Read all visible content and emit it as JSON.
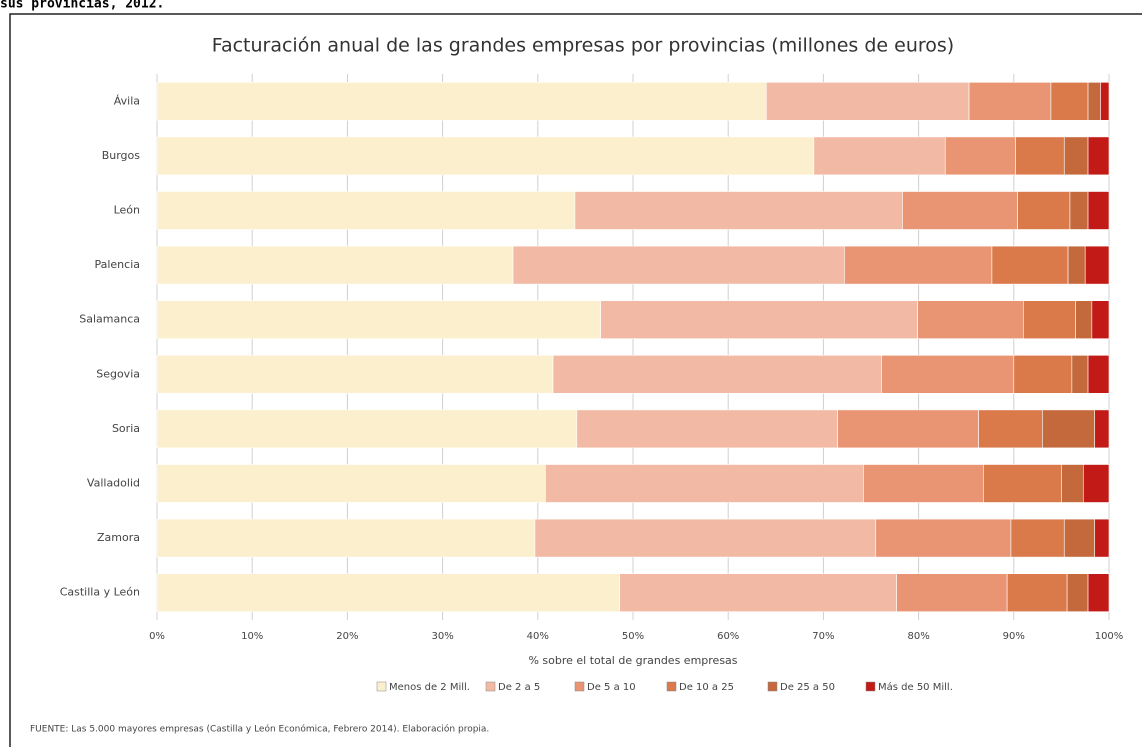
{
  "caption": "sus provincias, 2012.",
  "chart_data": {
    "type": "stacked-barh",
    "title": "Facturación anual de las grandes empresas por provincias (millones de euros)",
    "x_label": "% sobre el total de grandes empresas",
    "source": "FUENTE: Las 5.000 mayores empresas (Castilla y León Económica, Febrero 2014). Elaboración propia.",
    "categories": [
      "Ávila",
      "Burgos",
      "León",
      "Palencia",
      "Salamanca",
      "Segovia",
      "Soria",
      "Valladolid",
      "Zamora",
      "Castilla y León"
    ],
    "series": [
      {
        "name": "Menos de 2 Mill.",
        "color": "#fcefcd",
        "values": [
          64,
          69,
          43.9,
          37.4,
          46.6,
          41.6,
          44.1,
          40.8,
          39.7,
          48.6
        ]
      },
      {
        "name": "De 2 a 5",
        "color": "#f2baa4",
        "values": [
          21.3,
          13.8,
          34.4,
          34.8,
          33.3,
          34.5,
          27.4,
          33.4,
          35.8,
          29.1
        ]
      },
      {
        "name": "De 5 a 10",
        "color": "#e99574",
        "values": [
          8.6,
          7.4,
          12.1,
          15.5,
          11.1,
          13.9,
          14.8,
          12.6,
          14.2,
          11.6
        ]
      },
      {
        "name": "De 10 a 25",
        "color": "#da7a4a",
        "values": [
          3.9,
          5.1,
          5.5,
          8,
          5.5,
          6.1,
          6.7,
          8.2,
          5.6,
          6.3
        ]
      },
      {
        "name": "De 25 a 50",
        "color": "#c3693c",
        "values": [
          1.3,
          2.5,
          1.9,
          1.8,
          1.7,
          1.7,
          5.5,
          2.3,
          3.2,
          2.2
        ]
      },
      {
        "name": "Más de 50 Mill.",
        "color": "#c21a16",
        "values": [
          0.9,
          2.2,
          2.2,
          2.5,
          1.8,
          2.2,
          1.5,
          2.7,
          1.5,
          2.2
        ]
      }
    ],
    "xlim": [
      0,
      100
    ],
    "xticks": [
      {
        "value": 0,
        "label": "0%"
      },
      {
        "value": 10,
        "label": "10%"
      },
      {
        "value": 20,
        "label": "20%"
      },
      {
        "value": 30,
        "label": "30%"
      },
      {
        "value": 40,
        "label": "40%"
      },
      {
        "value": 50,
        "label": "50%"
      },
      {
        "value": 60,
        "label": "60%"
      },
      {
        "value": 70,
        "label": "70%"
      },
      {
        "value": 80,
        "label": "80%"
      },
      {
        "value": 90,
        "label": "90%"
      },
      {
        "value": 100,
        "label": "100%"
      }
    ],
    "grid": true
  }
}
